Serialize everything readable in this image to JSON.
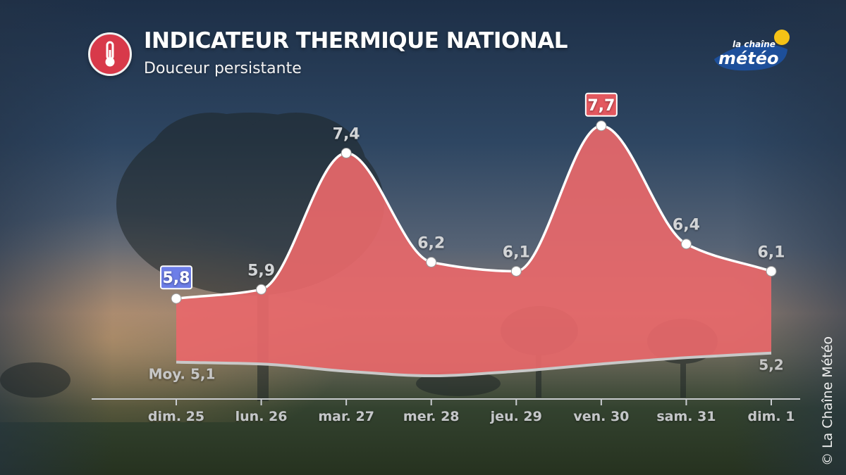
{
  "header": {
    "title": "INDICATEUR THERMIQUE NATIONAL",
    "subtitle": "Douceur persistante",
    "icon": "thermometer-icon"
  },
  "logo": {
    "line1": "la chaîne",
    "line2": "météo"
  },
  "copyright": "©  La Chaîne Météo",
  "colors": {
    "fill": "#e8686a",
    "min_badge": "#6d7ee8",
    "max_badge": "#e4585f",
    "line": "#ffffff",
    "normal_line": "#c8c8c8"
  },
  "chart_data": {
    "type": "area",
    "categories": [
      "dim. 25",
      "lun. 26",
      "mar. 27",
      "mer. 28",
      "jeu. 29",
      "ven. 30",
      "sam. 31",
      "dim. 1"
    ],
    "series": [
      {
        "values": [
          5.8,
          5.9,
          7.4,
          6.2,
          6.1,
          7.7,
          6.4,
          6.1
        ],
        "labels": [
          "5,8",
          "5,9",
          "7,4",
          "6,2",
          "6,1",
          "7,7",
          "6,4",
          "6,1"
        ]
      },
      {
        "values": [
          5.1,
          5.08,
          5.0,
          4.95,
          5.0,
          5.08,
          5.15,
          5.2
        ]
      }
    ],
    "normal_start_label": "Moy. 5,1",
    "normal_end_label": "5,2",
    "min_index": 0,
    "max_index": 5,
    "ylim": [
      4.3,
      8.0
    ]
  }
}
